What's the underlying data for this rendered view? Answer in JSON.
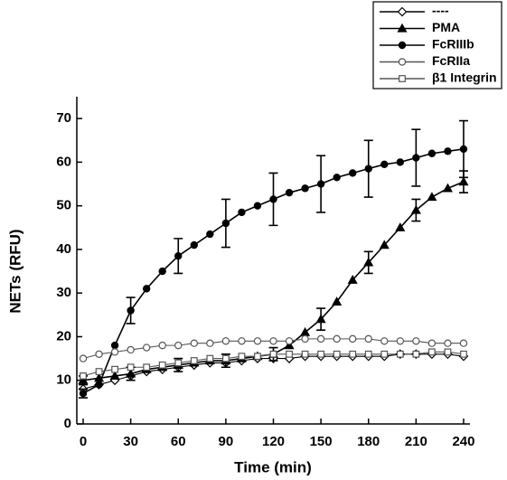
{
  "chart_data": {
    "type": "line",
    "x_label": "Time (min)",
    "y_label": "NETs (RFU)",
    "xlim": [
      -4,
      244
    ],
    "ylim": [
      0,
      75
    ],
    "xticks": [
      0,
      30,
      60,
      90,
      120,
      150,
      180,
      210,
      240
    ],
    "yticks": [
      0,
      10,
      20,
      30,
      40,
      50,
      60,
      70
    ],
    "x": [
      0,
      10,
      20,
      30,
      40,
      50,
      60,
      70,
      80,
      90,
      100,
      110,
      120,
      130,
      140,
      150,
      160,
      170,
      180,
      190,
      200,
      210,
      220,
      230,
      240
    ],
    "legend": "upper right",
    "series": [
      {
        "name": "----",
        "color": "#000000",
        "marker": "diamond",
        "filled": false,
        "values": [
          8,
          9,
          10,
          11,
          12,
          12.5,
          13,
          13.5,
          14,
          14,
          14.5,
          15,
          15,
          15,
          15.5,
          15.5,
          15.5,
          15.5,
          15.5,
          15.5,
          16,
          16,
          16,
          16,
          15.5
        ]
      },
      {
        "name": "PMA",
        "color": "#000000",
        "marker": "triangle",
        "filled": true,
        "values": [
          10,
          10.5,
          11,
          11.5,
          12.5,
          13,
          13.5,
          14,
          14.5,
          14.5,
          15,
          15.5,
          16,
          18,
          21,
          24,
          28,
          33,
          37,
          41,
          45,
          49,
          52,
          54,
          55.5
        ],
        "errors": [
          1,
          null,
          null,
          1.5,
          null,
          null,
          1.5,
          null,
          null,
          1.5,
          null,
          null,
          1.5,
          null,
          null,
          2.5,
          null,
          null,
          2.5,
          null,
          null,
          2.5,
          null,
          null,
          2.5
        ]
      },
      {
        "name": "FcRIIIb",
        "color": "#000000",
        "marker": "circle",
        "filled": true,
        "values": [
          7,
          9,
          18,
          26,
          31,
          35,
          38.5,
          41,
          43.5,
          46,
          48.5,
          50,
          51.5,
          53,
          54,
          55,
          56.5,
          57.5,
          58.5,
          59.5,
          60,
          61,
          62,
          62.5,
          63
        ],
        "errors": [
          1,
          null,
          null,
          3,
          null,
          null,
          4,
          null,
          null,
          5.5,
          null,
          null,
          6,
          null,
          null,
          6.5,
          null,
          null,
          6.5,
          null,
          null,
          6.5,
          null,
          null,
          6.5
        ]
      },
      {
        "name": "FcRIIa",
        "color": "#555555",
        "marker": "circle",
        "filled": false,
        "values": [
          15,
          16,
          16.5,
          17,
          17.5,
          18,
          18,
          18.5,
          18.5,
          19,
          19,
          19,
          19,
          19,
          19.5,
          19.5,
          19.5,
          19.5,
          19.5,
          19,
          19,
          19,
          18.5,
          18.5,
          18.5
        ]
      },
      {
        "name": "β1 Integrin",
        "color": "#555555",
        "marker": "square",
        "filled": false,
        "values": [
          11,
          12,
          12.5,
          13,
          13,
          13.5,
          14,
          14.5,
          15,
          15,
          15.5,
          15.5,
          16,
          16,
          16,
          16,
          16,
          16,
          16,
          16,
          16,
          16,
          16.5,
          16.5,
          16
        ]
      }
    ]
  }
}
